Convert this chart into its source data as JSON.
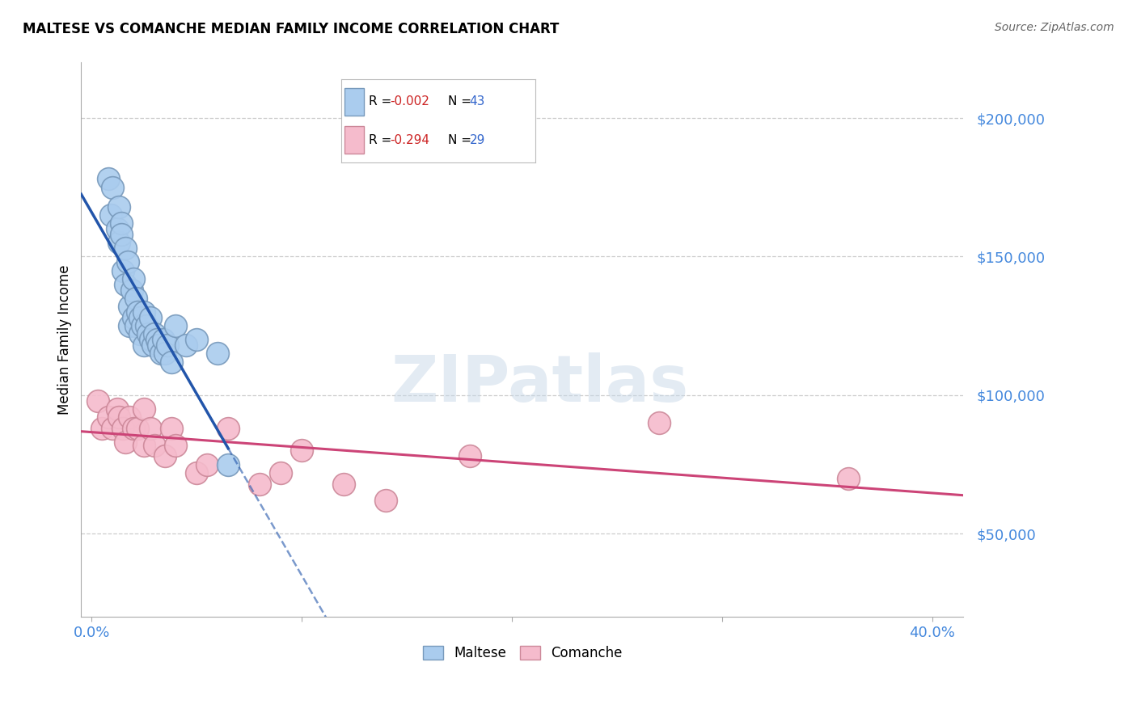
{
  "title": "MALTESE VS COMANCHE MEDIAN FAMILY INCOME CORRELATION CHART",
  "source": "Source: ZipAtlas.com",
  "ylabel": "Median Family Income",
  "ytick_labels": [
    "$50,000",
    "$100,000",
    "$150,000",
    "$200,000"
  ],
  "ytick_vals": [
    50000,
    100000,
    150000,
    200000
  ],
  "xtick_labels": [
    "0.0%",
    "40.0%"
  ],
  "xtick_vals": [
    0.0,
    0.4
  ],
  "xlim": [
    -0.005,
    0.415
  ],
  "ylim": [
    20000,
    220000
  ],
  "maltese_color": "#aaccee",
  "maltese_edge": "#7799bb",
  "comanche_color": "#f5bbcc",
  "comanche_edge": "#cc8899",
  "trendline_maltese_color": "#2255aa",
  "trendline_comanche_color": "#cc4477",
  "grid_color": "#cccccc",
  "watermark": "ZIPatlas",
  "maltese_x": [
    0.008,
    0.009,
    0.01,
    0.012,
    0.013,
    0.013,
    0.014,
    0.014,
    0.015,
    0.016,
    0.016,
    0.017,
    0.018,
    0.018,
    0.019,
    0.02,
    0.02,
    0.021,
    0.021,
    0.022,
    0.023,
    0.023,
    0.024,
    0.025,
    0.025,
    0.026,
    0.027,
    0.028,
    0.028,
    0.029,
    0.03,
    0.031,
    0.032,
    0.033,
    0.034,
    0.035,
    0.036,
    0.038,
    0.04,
    0.045,
    0.05,
    0.06,
    0.065
  ],
  "maltese_y": [
    178000,
    165000,
    175000,
    160000,
    168000,
    155000,
    162000,
    158000,
    145000,
    153000,
    140000,
    148000,
    132000,
    125000,
    138000,
    142000,
    128000,
    135000,
    125000,
    130000,
    128000,
    122000,
    125000,
    130000,
    118000,
    125000,
    122000,
    128000,
    120000,
    118000,
    122000,
    120000,
    118000,
    115000,
    120000,
    115000,
    118000,
    112000,
    125000,
    118000,
    120000,
    115000,
    75000
  ],
  "comanche_x": [
    0.003,
    0.005,
    0.008,
    0.01,
    0.012,
    0.013,
    0.015,
    0.016,
    0.018,
    0.02,
    0.022,
    0.025,
    0.025,
    0.028,
    0.03,
    0.035,
    0.038,
    0.04,
    0.05,
    0.055,
    0.065,
    0.08,
    0.09,
    0.1,
    0.12,
    0.14,
    0.18,
    0.27,
    0.36
  ],
  "comanche_y": [
    98000,
    88000,
    92000,
    88000,
    95000,
    92000,
    88000,
    83000,
    92000,
    88000,
    88000,
    95000,
    82000,
    88000,
    82000,
    78000,
    88000,
    82000,
    72000,
    75000,
    88000,
    68000,
    72000,
    80000,
    68000,
    62000,
    78000,
    90000,
    70000
  ]
}
